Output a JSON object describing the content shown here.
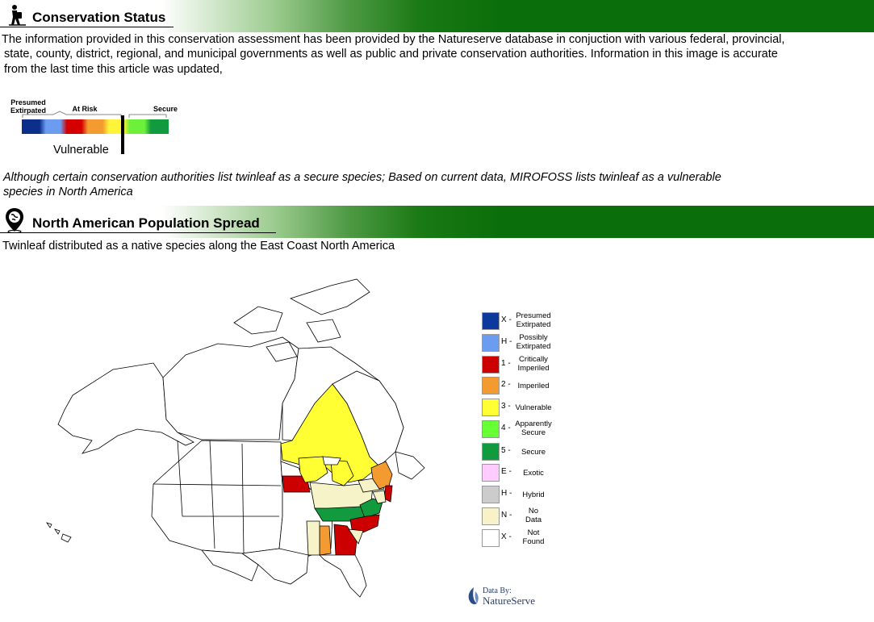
{
  "conservation": {
    "title": "Conservation Status",
    "icon": "hiker-icon",
    "paragraph_lines": [
      "The information provided in this conservation assessment has been provided by the Natureserve database in conjuction with various federal, provincial,",
      "state, county, district, regional, and municipal governments as well as public and private conservation authorities. Information in this image is accurate",
      "from the last time this article was updated,"
    ],
    "scale": {
      "label_presumed_1": "Presumed",
      "label_presumed_2": "Extirpated",
      "label_at_risk": "At Risk",
      "label_secure": "Secure",
      "marker_label": "Vulnerable",
      "colors": [
        "#0b2f8a",
        "#6b9cf0",
        "#d40000",
        "#f39a30",
        "#fff43a",
        "#6cf03a",
        "#119a3e"
      ]
    },
    "note_lines": [
      "Although certain conservation authorities list twinleaf as a secure species; Based on current data, MIROFOSS lists twinleaf as a vulnerable",
      "species in North America"
    ]
  },
  "population": {
    "title": "North American Population Spread",
    "icon": "location-pin-icon",
    "description": "Twinleaf distributed as a native species along the East Coast North America"
  },
  "legend": [
    {
      "code": "X -",
      "line1": "Presumed",
      "line2": "Extirpated",
      "color": "#0b3a9c"
    },
    {
      "code": "H -",
      "line1": "Possibly",
      "line2": "Extirpated",
      "color": "#6b9cf0"
    },
    {
      "code": "1 -",
      "line1": "Critically",
      "line2": "Imperiled",
      "color": "#cc0000"
    },
    {
      "code": "2 -",
      "line1": "Imperiled",
      "line2": "",
      "color": "#f39a30"
    },
    {
      "code": "3 -",
      "line1": "Vulnerable",
      "line2": "",
      "color": "#ffff33"
    },
    {
      "code": "4 -",
      "line1": "Apparently",
      "line2": "Secure",
      "color": "#66ff33"
    },
    {
      "code": "5 -",
      "line1": "Secure",
      "line2": "",
      "color": "#119a3e"
    },
    {
      "code": "E -",
      "line1": "Exotic",
      "line2": "",
      "color": "#ffccff"
    },
    {
      "code": "H -",
      "line1": "Hybrid",
      "line2": "",
      "color": "#cccccc"
    },
    {
      "code": "N -",
      "line1": "No",
      "line2": "Data",
      "color": "#f7f3c9"
    },
    {
      "code": "X -",
      "line1": "Not",
      "line2": "Found",
      "color": "#ffffff"
    }
  ],
  "credit": {
    "line1": "Data By:",
    "line2": "NatureServe"
  }
}
